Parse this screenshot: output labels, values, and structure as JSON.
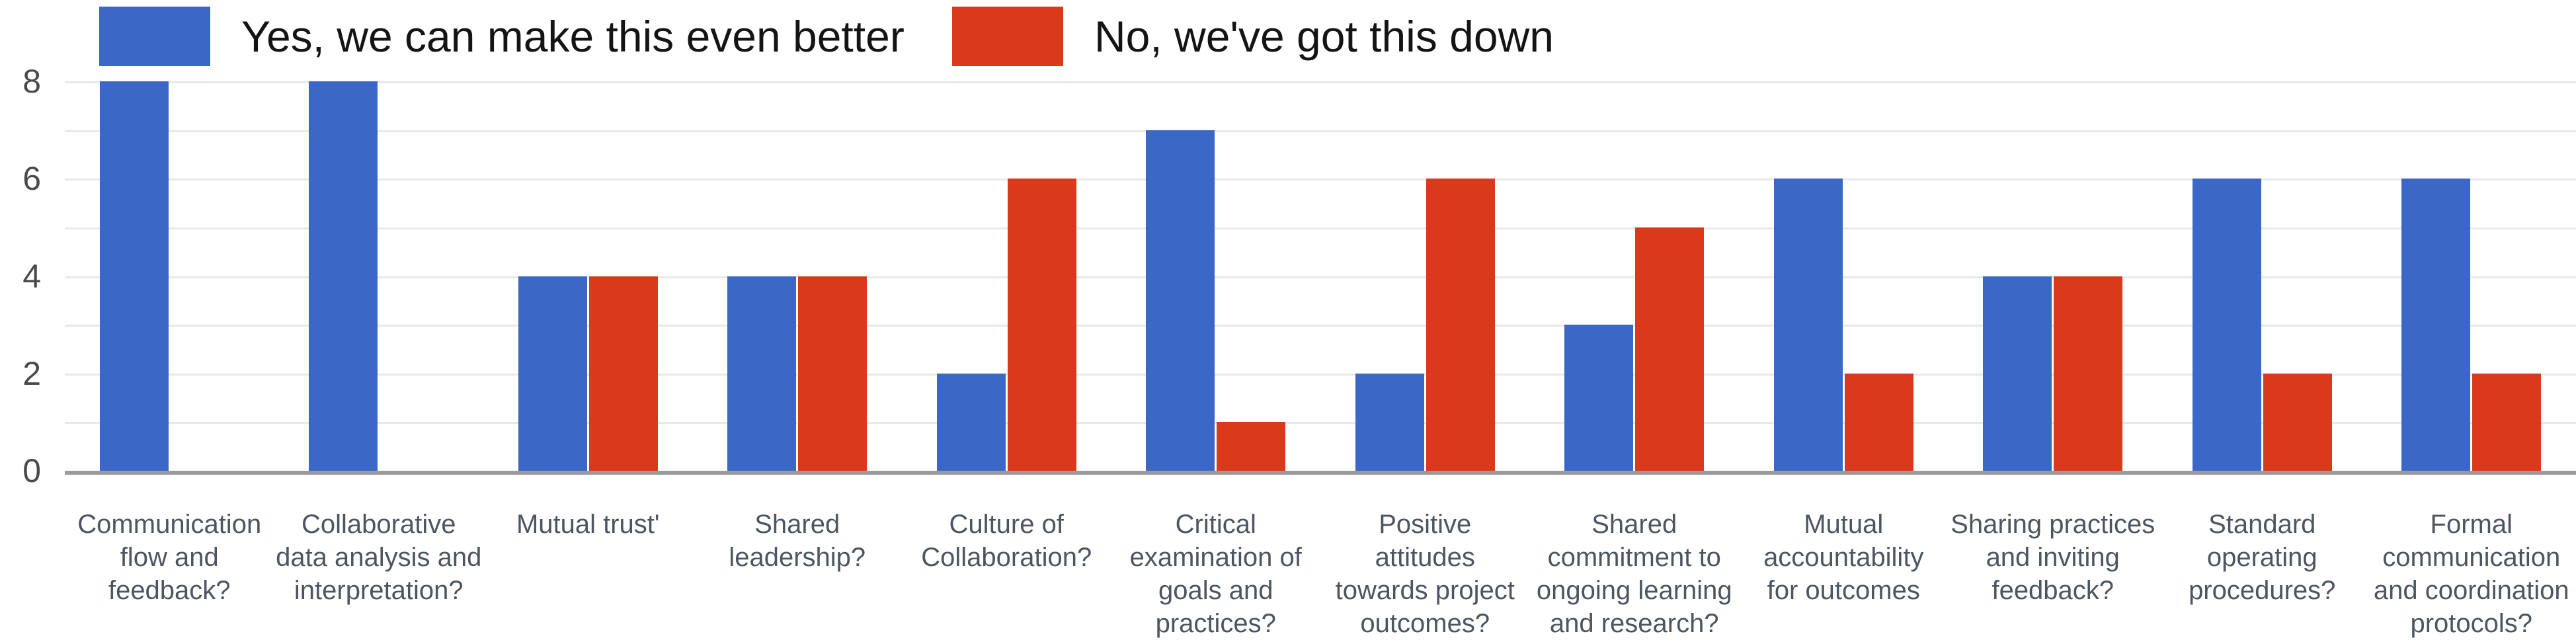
{
  "legend": {
    "yes_label": "Yes, we can make this even better",
    "no_label": "No, we've got this down",
    "yes_color": "#3b68c6",
    "no_color": "#da3a1b"
  },
  "y_axis": {
    "ticks": [
      0,
      2,
      4,
      6,
      8
    ],
    "gridline_step": 1,
    "max": 8
  },
  "chart_data": {
    "type": "bar",
    "title": "",
    "xlabel": "",
    "ylabel": "",
    "ylim": [
      0,
      8
    ],
    "grid": true,
    "legend_position": "top",
    "categories": [
      "Communication flow and feedback?",
      "Collaborative data analysis and interpretation?",
      "Mutual trust'",
      "Shared leadership?",
      "Culture of Collaboration?",
      "Critical examination of goals and practices?",
      "Positive attitudes towards project outcomes?",
      "Shared commitment to ongoing learning and research?",
      "Mutual accountability for outcomes",
      "Sharing practices and inviting feedback?",
      "Standard operating procedures?",
      "Formal communication and coordination protocols?"
    ],
    "category_lines": [
      [
        "Communication",
        "flow and",
        "feedback?"
      ],
      [
        "Collaborative",
        "data analysis and",
        "interpretation?"
      ],
      [
        "Mutual trust'"
      ],
      [
        "Shared",
        "leadership?"
      ],
      [
        "Culture of",
        "Collaboration?"
      ],
      [
        "Critical",
        "examination of",
        "goals and",
        "practices?"
      ],
      [
        "Positive",
        "attitudes",
        "towards project",
        "outcomes?"
      ],
      [
        "Shared",
        "commitment to",
        "ongoing learning",
        "and research?"
      ],
      [
        "Mutual",
        "accountability",
        "for outcomes"
      ],
      [
        "Sharing practices",
        "and inviting",
        "feedback?"
      ],
      [
        "Standard",
        "operating",
        "procedures?"
      ],
      [
        "Formal",
        "communication",
        "and coordination",
        "protocols?"
      ]
    ],
    "series": [
      {
        "name": "Yes, we can make this even better",
        "color": "#3b68c6",
        "values": [
          8,
          8,
          4,
          4,
          2,
          7,
          2,
          3,
          6,
          4,
          6,
          6
        ]
      },
      {
        "name": "No, we've got this down",
        "color": "#da3a1b",
        "values": [
          0,
          0,
          4,
          4,
          6,
          1,
          6,
          5,
          2,
          4,
          2,
          2
        ]
      }
    ]
  }
}
